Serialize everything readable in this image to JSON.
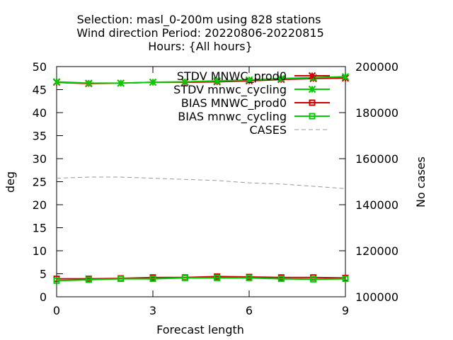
{
  "chart_data": {
    "type": "line",
    "title_lines": [
      "Selection: masl_0-200m using   828 stations",
      "Wind direction   Period: 20220806-20220815",
      "Hours: {All hours}"
    ],
    "xlabel": "Forecast length",
    "ylabel": "deg",
    "y2label": "No cases",
    "xlim": [
      0,
      9
    ],
    "ylim": [
      0,
      50
    ],
    "y2lim": [
      100000,
      200000
    ],
    "x_ticks": [
      0,
      3,
      6,
      9
    ],
    "y_ticks": [
      0,
      5,
      10,
      15,
      20,
      25,
      30,
      35,
      40,
      45,
      50
    ],
    "y2_ticks": [
      100000,
      120000,
      140000,
      160000,
      180000,
      200000
    ],
    "legend_position": "top-right",
    "grid": false,
    "series": [
      {
        "name": "STDV MNWC_prod0",
        "color": "#cc0000",
        "marker": "x",
        "axis": "y",
        "x": [
          0,
          1,
          2,
          3,
          4,
          5,
          6,
          7,
          8,
          9
        ],
        "values": [
          46.6,
          46.3,
          46.4,
          46.6,
          46.6,
          46.7,
          46.9,
          47.2,
          47.4,
          47.5
        ]
      },
      {
        "name": "STDV mnwc_cycling",
        "color": "#00cc00",
        "marker": "x",
        "axis": "y",
        "x": [
          0,
          1,
          2,
          3,
          4,
          5,
          6,
          7,
          8,
          9
        ],
        "values": [
          46.7,
          46.4,
          46.4,
          46.6,
          46.7,
          46.9,
          47.1,
          47.4,
          47.6,
          47.8
        ]
      },
      {
        "name": "BIAS MNWC_prod0",
        "color": "#cc0000",
        "marker": "square",
        "axis": "y",
        "x": [
          0,
          1,
          2,
          3,
          4,
          5,
          6,
          7,
          8,
          9
        ],
        "values": [
          3.9,
          3.9,
          4.0,
          4.2,
          4.2,
          4.4,
          4.3,
          4.2,
          4.2,
          4.1
        ]
      },
      {
        "name": "BIAS mnwc_cycling",
        "color": "#00cc00",
        "marker": "square",
        "axis": "y",
        "x": [
          0,
          1,
          2,
          3,
          4,
          5,
          6,
          7,
          8,
          9
        ],
        "values": [
          3.5,
          3.7,
          3.9,
          3.9,
          4.1,
          4.1,
          4.1,
          3.9,
          3.8,
          3.9
        ]
      },
      {
        "name": "CASES",
        "color": "#999999",
        "marker": "none",
        "dashed": true,
        "axis": "y2",
        "x": [
          0,
          1,
          2,
          3,
          4,
          5,
          6,
          7,
          8,
          9
        ],
        "values": [
          151500,
          152000,
          152000,
          151500,
          151000,
          150500,
          149500,
          149000,
          148000,
          147000
        ]
      }
    ]
  }
}
